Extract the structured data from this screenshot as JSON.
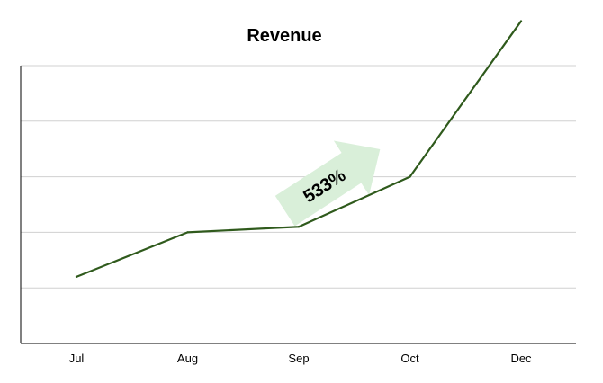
{
  "chart_data": {
    "type": "line",
    "title": "Revenue",
    "xlabel": "",
    "ylabel": "",
    "categories": [
      "Jul",
      "Aug",
      "Sep",
      "Oct",
      "Dec"
    ],
    "series": [
      {
        "values": [
          1.2,
          2.0,
          2.1,
          3.0,
          5.8
        ]
      }
    ],
    "ylim": [
      0,
      5
    ],
    "y_gridlines": [
      1,
      2,
      3,
      4,
      5
    ],
    "grid": true,
    "y_tick_labels_shown": false,
    "legend": "none",
    "annotation": {
      "text": "533%",
      "shape": "arrow",
      "direction": "up-right"
    },
    "colors": {
      "line": "#2f5a1c",
      "gridline": "#d0d0d0",
      "axis": "#000000",
      "arrow": "#d9efd9"
    }
  }
}
